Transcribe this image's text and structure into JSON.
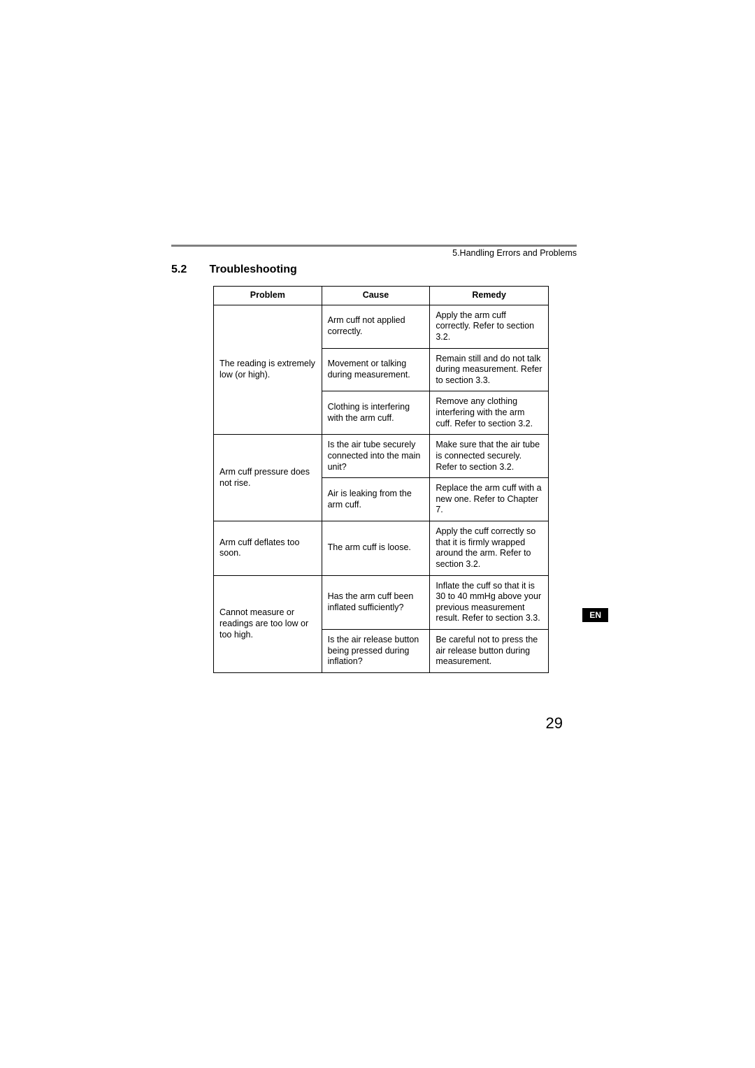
{
  "header": {
    "breadcrumb": "5.Handling Errors and Problems"
  },
  "section": {
    "number": "5.2",
    "title": "Troubleshooting"
  },
  "table": {
    "headers": {
      "problem": "Problem",
      "cause": "Cause",
      "remedy": "Remedy"
    },
    "rows": [
      {
        "problem": "The reading is extremely low (or high).",
        "causes": [
          {
            "cause": "Arm cuff not applied correctly.",
            "remedy": "Apply the arm cuff correctly.\nRefer to section 3.2."
          },
          {
            "cause": "Movement or talking during measurement.",
            "remedy": "Remain still and do not talk during measurement.\nRefer to section 3.3."
          },
          {
            "cause": "Clothing is interfering with the arm cuff.",
            "remedy": "Remove any clothing interfering with the arm cuff.\nRefer to section 3.2."
          }
        ]
      },
      {
        "problem": "Arm cuff pressure does not rise.",
        "causes": [
          {
            "cause": "Is the air tube securely connected into the main unit?",
            "remedy": "Make sure that the air tube is connected securely.\nRefer to section 3.2."
          },
          {
            "cause": "Air is leaking from the arm cuff.",
            "remedy": "Replace the arm cuff with a new one.\nRefer to Chapter 7."
          }
        ]
      },
      {
        "problem": "Arm cuff deflates too soon.",
        "causes": [
          {
            "cause": "The arm cuff is loose.",
            "remedy": "Apply the cuff correctly so that it is firmly wrapped around the arm.\nRefer to section 3.2."
          }
        ]
      },
      {
        "problem": "Cannot measure or readings are too low or too high.",
        "causes": [
          {
            "cause": "Has the arm cuff been inflated sufficiently?",
            "remedy": "Inflate the cuff so that it is 30 to 40 mmHg above your previous measurement result.\nRefer to section 3.3."
          },
          {
            "cause": "Is the air release button being pressed during inflation?",
            "remedy": "Be careful not to press the air release button during measurement."
          }
        ]
      }
    ]
  },
  "langTab": "EN",
  "pageNumber": "29"
}
